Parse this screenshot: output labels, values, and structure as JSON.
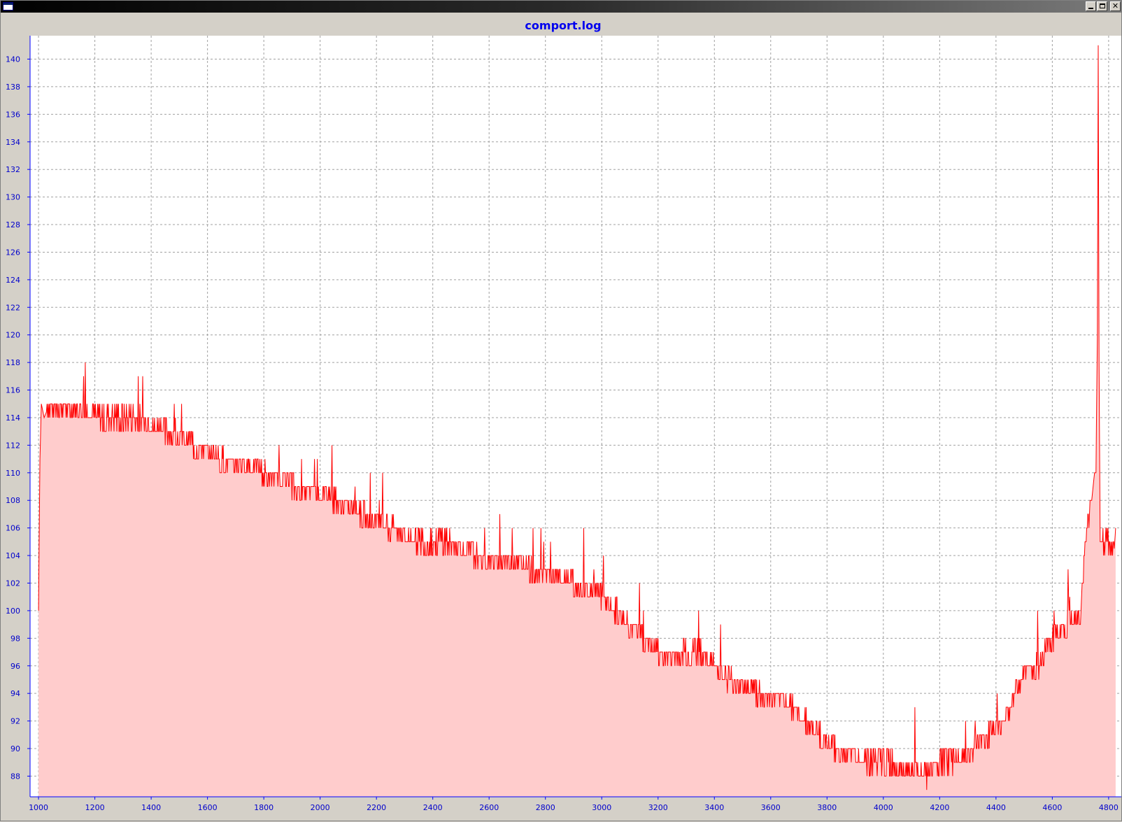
{
  "window": {
    "title": "",
    "buttons": {
      "minimize": "minimize",
      "maximize": "restore",
      "close": "close"
    }
  },
  "colors": {
    "line": "#ff0000",
    "fill": "#ffcccc",
    "axis": "#0000ff",
    "grid": "#a0a0a0",
    "title": "#0000ee"
  },
  "chart_data": {
    "type": "area",
    "title": "comport.log",
    "xlabel": "",
    "ylabel": "",
    "xlim": [
      970,
      4845
    ],
    "ylim": [
      86.5,
      141.7
    ],
    "grid": true,
    "legend": "none",
    "x_ticks": [
      1000,
      1200,
      1400,
      1600,
      1800,
      2000,
      2200,
      2400,
      2600,
      2800,
      3000,
      3200,
      3400,
      3600,
      3800,
      4000,
      4200,
      4400,
      4600,
      4800
    ],
    "y_ticks": [
      88,
      90,
      92,
      94,
      96,
      98,
      100,
      102,
      104,
      106,
      108,
      110,
      112,
      114,
      116,
      118,
      120,
      122,
      124,
      126,
      128,
      130,
      132,
      134,
      136,
      138,
      140
    ],
    "series": [
      {
        "name": "",
        "x": [
          1000,
          1005,
          1010,
          1020,
          1030,
          1050,
          1100,
          1150,
          1200,
          1250,
          1300,
          1350,
          1400,
          1450,
          1500,
          1550,
          1600,
          1650,
          1700,
          1750,
          1800,
          1850,
          1900,
          1950,
          2000,
          2050,
          2100,
          2150,
          2200,
          2250,
          2300,
          2350,
          2400,
          2450,
          2500,
          2550,
          2600,
          2650,
          2700,
          2750,
          2800,
          2850,
          2900,
          2950,
          3000,
          3050,
          3100,
          3150,
          3200,
          3250,
          3300,
          3350,
          3400,
          3450,
          3500,
          3550,
          3600,
          3650,
          3700,
          3750,
          3800,
          3850,
          3900,
          3950,
          4000,
          4050,
          4100,
          4150,
          4200,
          4250,
          4300,
          4350,
          4400,
          4450,
          4500,
          4550,
          4600,
          4650,
          4700,
          4720,
          4740,
          4750,
          4755,
          4760,
          4763,
          4766,
          4770,
          4780,
          4800,
          4820,
          4825
        ],
        "y": [
          100,
          111,
          115,
          114,
          114.5,
          114.5,
          114.5,
          114.5,
          114,
          114,
          114,
          114,
          113.5,
          113,
          112.5,
          112,
          111.5,
          111,
          110.5,
          110.5,
          110,
          109.5,
          109,
          108.5,
          108.5,
          108,
          107.5,
          107,
          106.5,
          106,
          105.5,
          105,
          105,
          105,
          104.5,
          104,
          103.5,
          103.5,
          103.5,
          103,
          102.5,
          102.5,
          102,
          101.5,
          101,
          100,
          99,
          98,
          97,
          96.5,
          97,
          97,
          96,
          95,
          94.5,
          94,
          93.5,
          93.5,
          92.5,
          91.5,
          90.5,
          89.5,
          89.5,
          89,
          89,
          89,
          88.5,
          88,
          89,
          89,
          89.5,
          90.5,
          91.5,
          93,
          95.5,
          96,
          98,
          99,
          100,
          106,
          108,
          110,
          110,
          120,
          141,
          118,
          105,
          105,
          105,
          104.5,
          106
        ]
      }
    ]
  }
}
